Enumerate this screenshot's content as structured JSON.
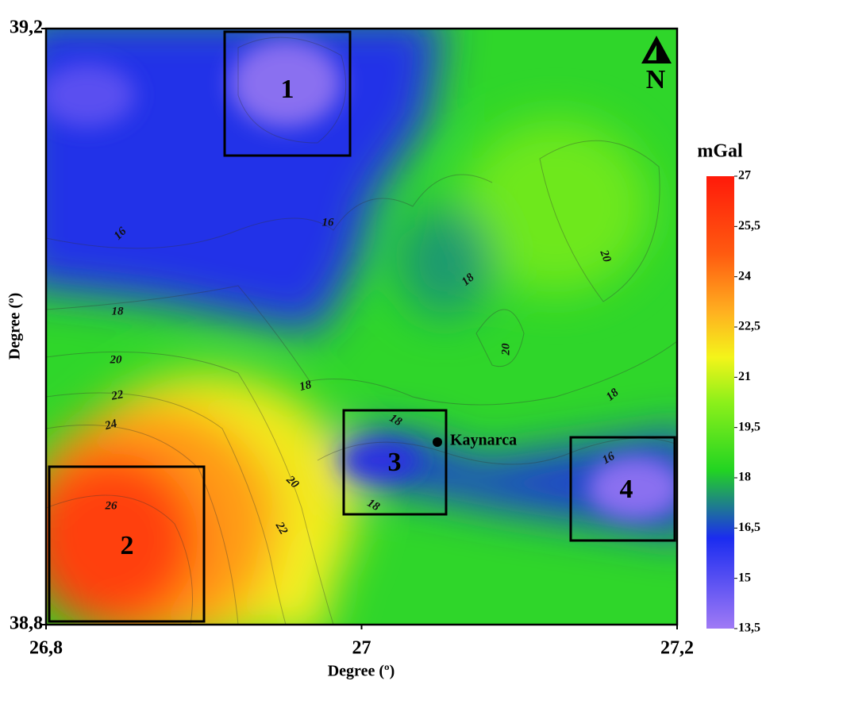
{
  "axes": {
    "x_label": "Degree (º)",
    "y_label": "Degree (º)",
    "xlim": [
      26.8,
      27.2
    ],
    "ylim": [
      38.8,
      39.2
    ],
    "xticks": [
      {
        "value": 26.8,
        "label": "26,8"
      },
      27,
      {
        "value": 27.2,
        "label": "27,2"
      }
    ],
    "yticks": [
      {
        "value": 38.8,
        "label": "38,8"
      },
      {
        "value": 39.2,
        "label": "39,2"
      }
    ]
  },
  "colorbar": {
    "title": "mGal",
    "lim": [
      13.5,
      27
    ],
    "ticks": [
      27,
      {
        "value": 25.5,
        "label": "25,5"
      },
      24,
      {
        "value": 22.5,
        "label": "22,5"
      },
      21,
      {
        "value": 19.5,
        "label": "19,5"
      },
      18,
      {
        "value": 16.5,
        "label": "16,5"
      },
      15,
      {
        "value": 13.5,
        "label": "13,5"
      }
    ]
  },
  "contour_labels": [
    16,
    16,
    16,
    18,
    18,
    18,
    18,
    18,
    18,
    20,
    20,
    20,
    20,
    22,
    22,
    24,
    26
  ],
  "boxes": [
    "1",
    "2",
    "3",
    "4"
  ],
  "site": "Kaynarca",
  "north": "N"
}
